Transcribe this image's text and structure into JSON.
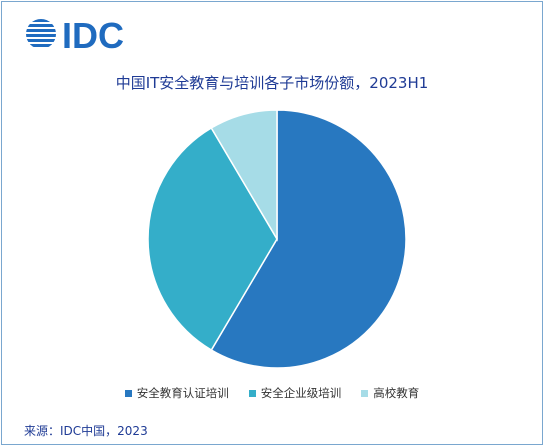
{
  "logo": {
    "text": "IDC",
    "color": "#1f6bbf"
  },
  "chart_data": {
    "type": "pie",
    "title": "中国IT安全教育与培训各子市场份额，2023H1",
    "categories": [
      "安全教育认证培训",
      "安全企业级培训",
      "高校教育"
    ],
    "values": [
      58.5,
      33,
      8.5
    ],
    "colors": [
      "#2878c0",
      "#34aec9",
      "#a6dce7"
    ],
    "legend_position": "bottom"
  },
  "source": "来源：IDC中国，2023"
}
